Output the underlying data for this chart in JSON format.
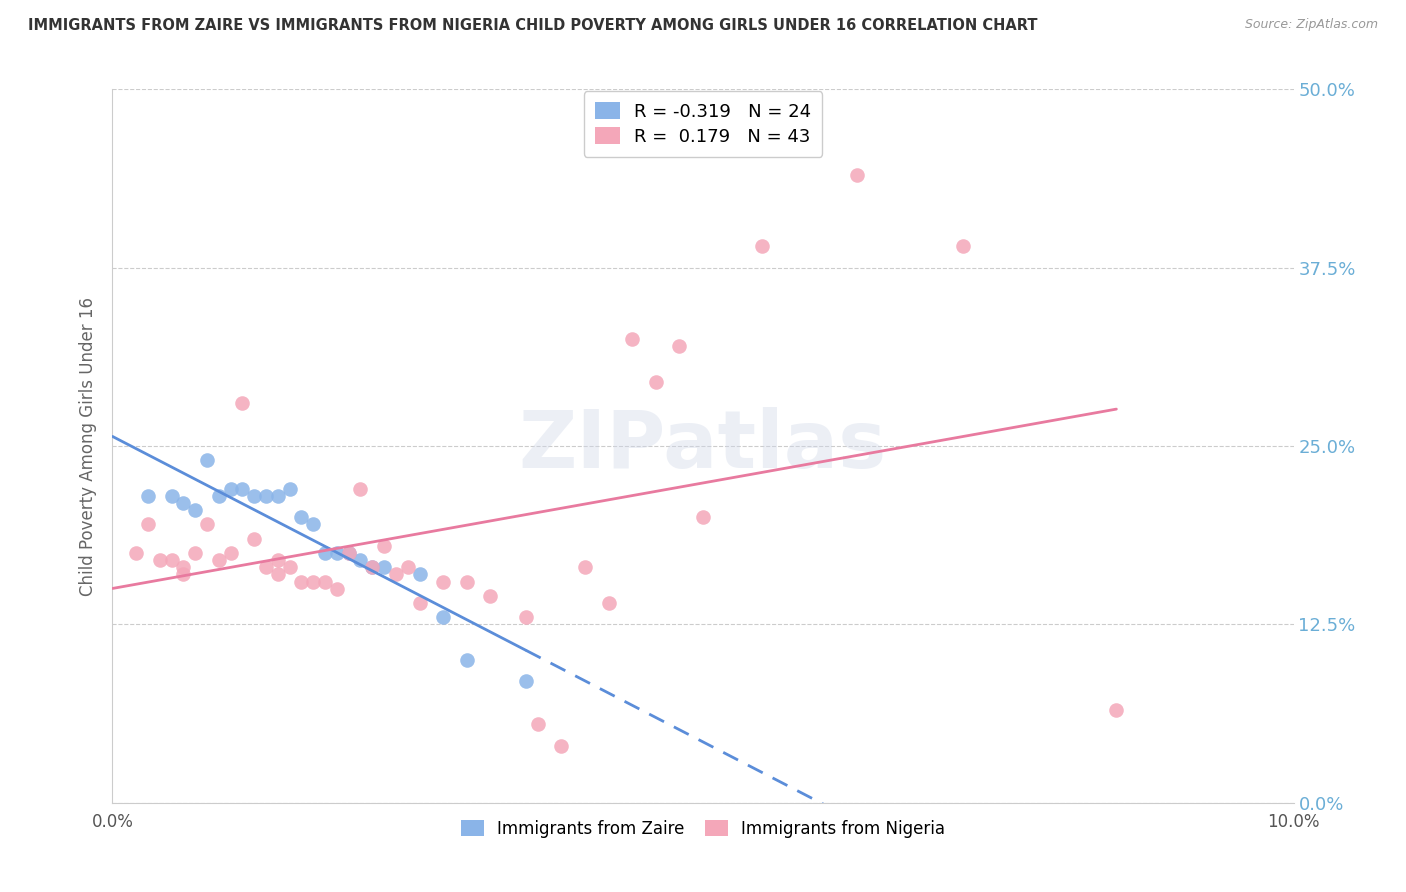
{
  "title": "IMMIGRANTS FROM ZAIRE VS IMMIGRANTS FROM NIGERIA CHILD POVERTY AMONG GIRLS UNDER 16 CORRELATION CHART",
  "source": "Source: ZipAtlas.com",
  "ylabel": "Child Poverty Among Girls Under 16",
  "xlim": [
    0.0,
    0.1
  ],
  "ylim": [
    0.0,
    0.5
  ],
  "ytick_labels": [
    "0.0%",
    "12.5%",
    "25.0%",
    "37.5%",
    "50.0%"
  ],
  "ytick_values": [
    0.0,
    0.125,
    0.25,
    0.375,
    0.5
  ],
  "xtick_labels": [
    "0.0%",
    "10.0%"
  ],
  "xtick_values": [
    0.0,
    0.1
  ],
  "legend_r_zaire": "-0.319",
  "legend_n_zaire": "24",
  "legend_r_nigeria": "0.179",
  "legend_n_nigeria": "43",
  "zaire_color": "#8ab4e8",
  "nigeria_color": "#f4a7b9",
  "zaire_line_color": "#5b8dd9",
  "nigeria_line_color": "#e87a9f",
  "background_color": "#ffffff",
  "watermark": "ZIPatlas",
  "grid_color": "#cccccc",
  "right_label_color": "#6baed6",
  "title_color": "#333333",
  "source_color": "#999999",
  "zaire_points": [
    [
      0.003,
      0.215
    ],
    [
      0.005,
      0.215
    ],
    [
      0.006,
      0.21
    ],
    [
      0.007,
      0.205
    ],
    [
      0.008,
      0.24
    ],
    [
      0.009,
      0.215
    ],
    [
      0.01,
      0.22
    ],
    [
      0.011,
      0.22
    ],
    [
      0.012,
      0.215
    ],
    [
      0.013,
      0.215
    ],
    [
      0.014,
      0.215
    ],
    [
      0.015,
      0.22
    ],
    [
      0.016,
      0.2
    ],
    [
      0.017,
      0.195
    ],
    [
      0.018,
      0.175
    ],
    [
      0.019,
      0.175
    ],
    [
      0.02,
      0.175
    ],
    [
      0.021,
      0.17
    ],
    [
      0.022,
      0.165
    ],
    [
      0.023,
      0.165
    ],
    [
      0.026,
      0.16
    ],
    [
      0.028,
      0.13
    ],
    [
      0.03,
      0.1
    ],
    [
      0.035,
      0.085
    ]
  ],
  "nigeria_points": [
    [
      0.002,
      0.175
    ],
    [
      0.003,
      0.195
    ],
    [
      0.004,
      0.17
    ],
    [
      0.005,
      0.17
    ],
    [
      0.006,
      0.165
    ],
    [
      0.006,
      0.16
    ],
    [
      0.007,
      0.175
    ],
    [
      0.008,
      0.195
    ],
    [
      0.009,
      0.17
    ],
    [
      0.01,
      0.175
    ],
    [
      0.011,
      0.28
    ],
    [
      0.012,
      0.185
    ],
    [
      0.013,
      0.165
    ],
    [
      0.014,
      0.17
    ],
    [
      0.014,
      0.16
    ],
    [
      0.015,
      0.165
    ],
    [
      0.016,
      0.155
    ],
    [
      0.017,
      0.155
    ],
    [
      0.018,
      0.155
    ],
    [
      0.019,
      0.15
    ],
    [
      0.02,
      0.175
    ],
    [
      0.021,
      0.22
    ],
    [
      0.022,
      0.165
    ],
    [
      0.023,
      0.18
    ],
    [
      0.024,
      0.16
    ],
    [
      0.025,
      0.165
    ],
    [
      0.026,
      0.14
    ],
    [
      0.028,
      0.155
    ],
    [
      0.03,
      0.155
    ],
    [
      0.032,
      0.145
    ],
    [
      0.035,
      0.13
    ],
    [
      0.036,
      0.055
    ],
    [
      0.038,
      0.04
    ],
    [
      0.04,
      0.165
    ],
    [
      0.042,
      0.14
    ],
    [
      0.044,
      0.325
    ],
    [
      0.046,
      0.295
    ],
    [
      0.048,
      0.32
    ],
    [
      0.05,
      0.2
    ],
    [
      0.055,
      0.39
    ],
    [
      0.063,
      0.44
    ],
    [
      0.072,
      0.39
    ],
    [
      0.085,
      0.065
    ]
  ],
  "zaire_line_xrange": [
    0.0,
    0.05
  ],
  "zaire_dash_xrange": [
    0.05,
    0.1
  ],
  "nigeria_line_xrange": [
    0.0,
    0.085
  ]
}
